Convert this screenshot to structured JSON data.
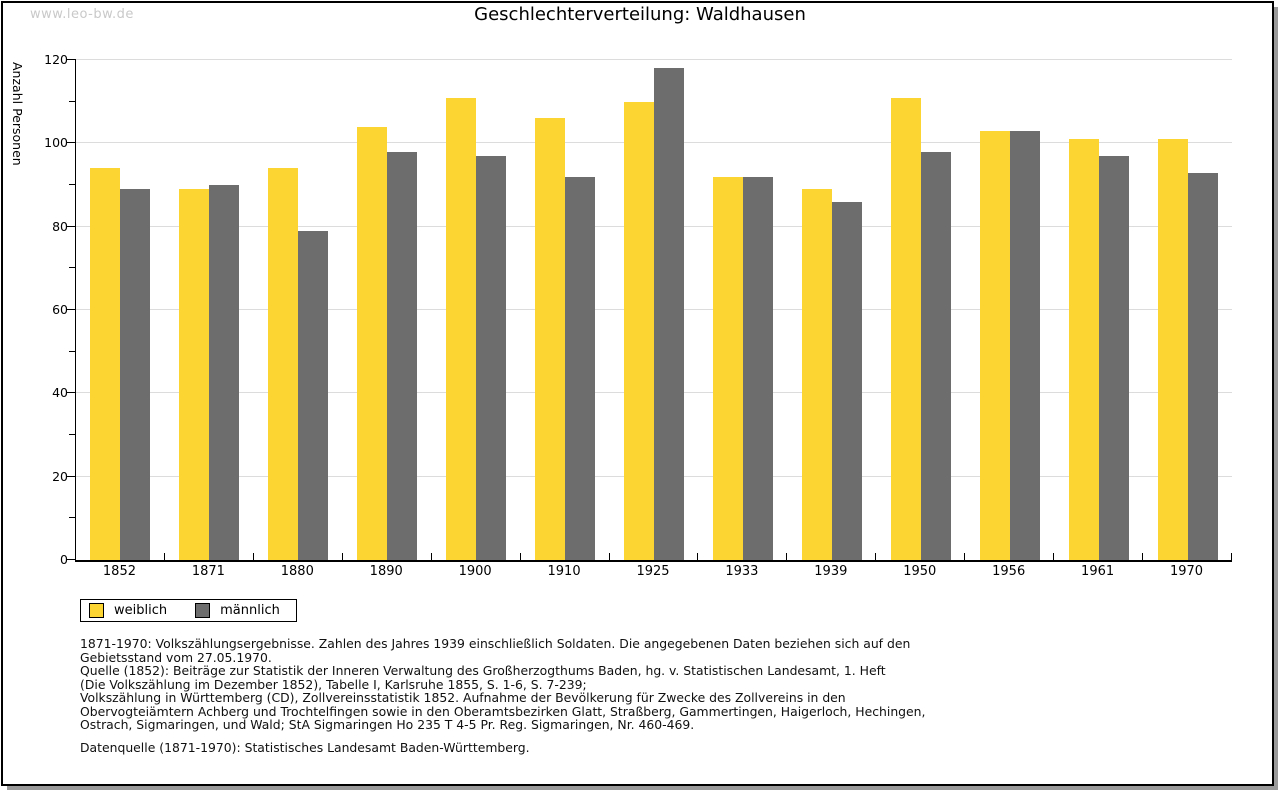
{
  "watermark": "www.leo-bw.de",
  "title": "Geschlechterverteilung: Waldhausen",
  "chart_data": {
    "type": "bar",
    "title": "Geschlechterverteilung: Waldhausen",
    "xlabel": "",
    "ylabel": "Anzahl Personen",
    "ylim": [
      0,
      120
    ],
    "yticks": [
      0,
      20,
      40,
      60,
      80,
      100,
      120
    ],
    "minor_tick_step": 10,
    "grid": true,
    "legend_position": "bottom-left",
    "categories": [
      "1852",
      "1871",
      "1880",
      "1890",
      "1900",
      "1910",
      "1925",
      "1933",
      "1939",
      "1950",
      "1956",
      "1961",
      "1970"
    ],
    "series": [
      {
        "name": "weiblich",
        "color": "#fdd532",
        "values": [
          94,
          89,
          94,
          104,
          111,
          106,
          110,
          92,
          89,
          111,
          103,
          101,
          101
        ]
      },
      {
        "name": "männlich",
        "color": "#6d6d6d",
        "values": [
          89,
          90,
          79,
          98,
          97,
          92,
          118,
          92,
          86,
          98,
          103,
          97,
          93
        ]
      }
    ]
  },
  "legend": {
    "items": [
      {
        "label": "weiblich",
        "color": "#fdd532"
      },
      {
        "label": "männlich",
        "color": "#6d6d6d"
      }
    ]
  },
  "notes": "1871-1970: Volkszählungsergebnisse. Zahlen des Jahres 1939 einschließlich Soldaten. Die angegebenen Daten beziehen sich auf den\nGebietsstand vom 27.05.1970.\nQuelle (1852): Beiträge zur Statistik der Inneren Verwaltung des Großherzogthums Baden, hg. v. Statistischen Landesamt, 1. Heft\n(Die Volkszählung im Dezember 1852), Tabelle I, Karlsruhe 1855, S. 1-6, S. 7-239;\nVolkszählung in Württemberg (CD), Zollvereinsstatistik 1852. Aufnahme der Bevölkerung für Zwecke des Zollvereins in den\nObervogteiämtern Achberg und Trochtelfingen sowie in den Oberamtsbezirken Glatt, Straßberg, Gammertingen, Haigerloch, Hechingen,\nOstrach, Sigmaringen, und Wald; StA Sigmaringen Ho 235 T 4-5 Pr. Reg. Sigmaringen, Nr. 460-469.",
  "datasource": "Datenquelle (1871-1970): Statistisches Landesamt Baden-Württemberg."
}
